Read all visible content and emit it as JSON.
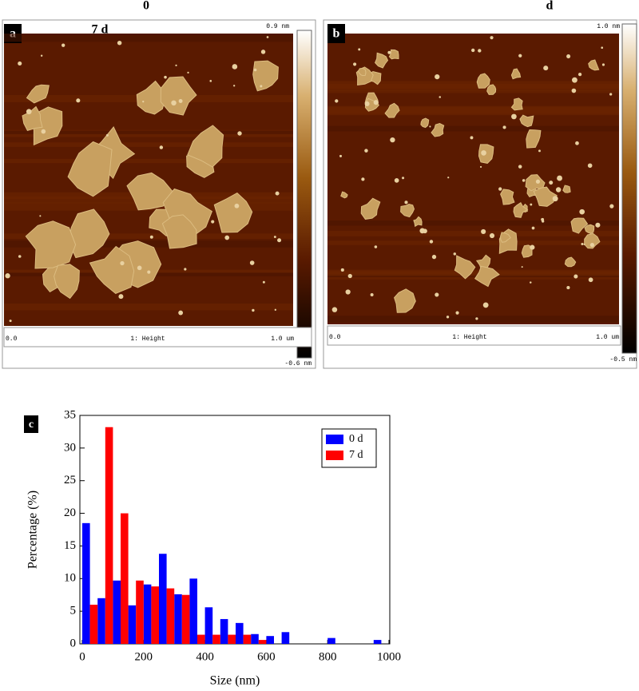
{
  "panels": [
    {
      "label": "a",
      "heading": "0",
      "overlay": "7 d",
      "scale_max": "0.9 nm",
      "scale_min": "-0.6 nm",
      "x_start": "0.0",
      "channel": "1: Height",
      "x_end": "1.0 um"
    },
    {
      "label": "b",
      "heading": "d",
      "scale_max": "1.0 nm",
      "scale_min": "-0.5 nm",
      "x_start": "0.0",
      "channel": "1: Height",
      "x_end": "1.0 um"
    }
  ],
  "chart_data": {
    "type": "bar",
    "panel_label": "c",
    "x_label": "Size (nm)",
    "y_label": "Percentage (%)",
    "x": [
      0,
      50,
      100,
      150,
      200,
      250,
      300,
      350,
      400,
      450,
      500,
      550,
      600,
      650,
      700,
      750,
      800,
      850,
      900,
      950
    ],
    "series": [
      {
        "name": "0 d",
        "color": "#0000ff",
        "values": [
          18.5,
          7,
          9.7,
          5.9,
          9.1,
          13.8,
          7.6,
          10,
          5.6,
          3.8,
          3.2,
          1.5,
          1.2,
          1.8,
          null,
          null,
          0.9,
          null,
          null,
          0.6
        ]
      },
      {
        "name": "7 d",
        "color": "#ff0000",
        "values": [
          6,
          33.2,
          20,
          9.7,
          8.8,
          8.5,
          7.5,
          1.4,
          1.4,
          1.4,
          1.4,
          0.6,
          null,
          null,
          null,
          null,
          null,
          null,
          null,
          null
        ]
      }
    ],
    "xlim": [
      0,
      1000
    ],
    "xticks": [
      0,
      200,
      400,
      600,
      800,
      1000
    ],
    "ylim": [
      0,
      35
    ],
    "yticks": [
      0,
      5,
      10,
      15,
      20,
      25,
      30,
      35
    ],
    "legend": "upper right"
  }
}
